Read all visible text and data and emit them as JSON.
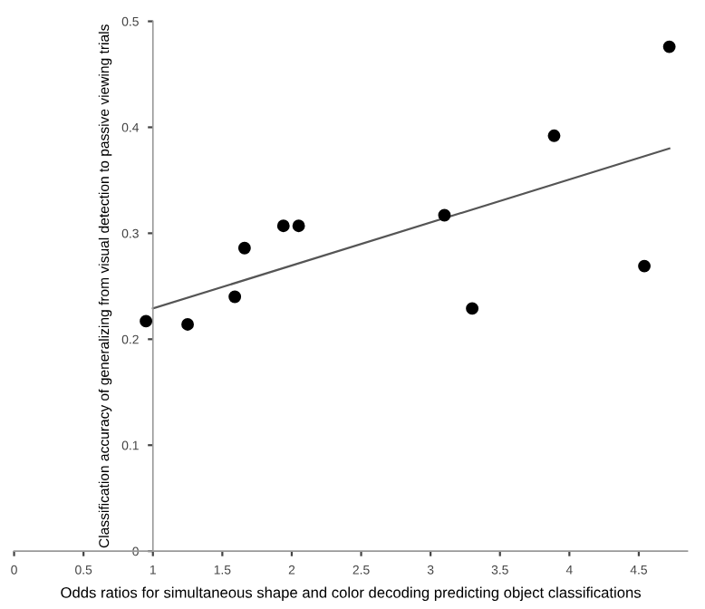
{
  "chart_data": {
    "type": "scatter",
    "xlabel": "Odds ratios for simultaneous shape and color decoding predicting object classifications",
    "ylabel": "Classification accuracy of generalizing from visual detection to passive viewing trials",
    "xlim": [
      0,
      4.85
    ],
    "ylim": [
      0,
      0.5
    ],
    "xticks": [
      0,
      0.5,
      1,
      1.5,
      2,
      2.5,
      3,
      3.5,
      4,
      4.5
    ],
    "yticks": [
      0,
      0.1,
      0.2,
      0.3,
      0.4,
      0.5
    ],
    "grid": false,
    "legend": false,
    "series": [
      {
        "marker": "circle",
        "color": "#000000",
        "x": [
          0.95,
          1.25,
          1.59,
          1.66,
          1.94,
          2.05,
          3.1,
          3.3,
          3.89,
          4.54,
          4.72
        ],
        "values": [
          0.217,
          0.214,
          0.24,
          0.286,
          0.307,
          0.307,
          0.317,
          0.229,
          0.392,
          0.269,
          0.476
        ]
      },
      {
        "type": "line",
        "marker": "none",
        "color": "#555555",
        "x": [
          1,
          4.72
        ],
        "values": [
          0.229,
          0.38
        ]
      }
    ]
  }
}
